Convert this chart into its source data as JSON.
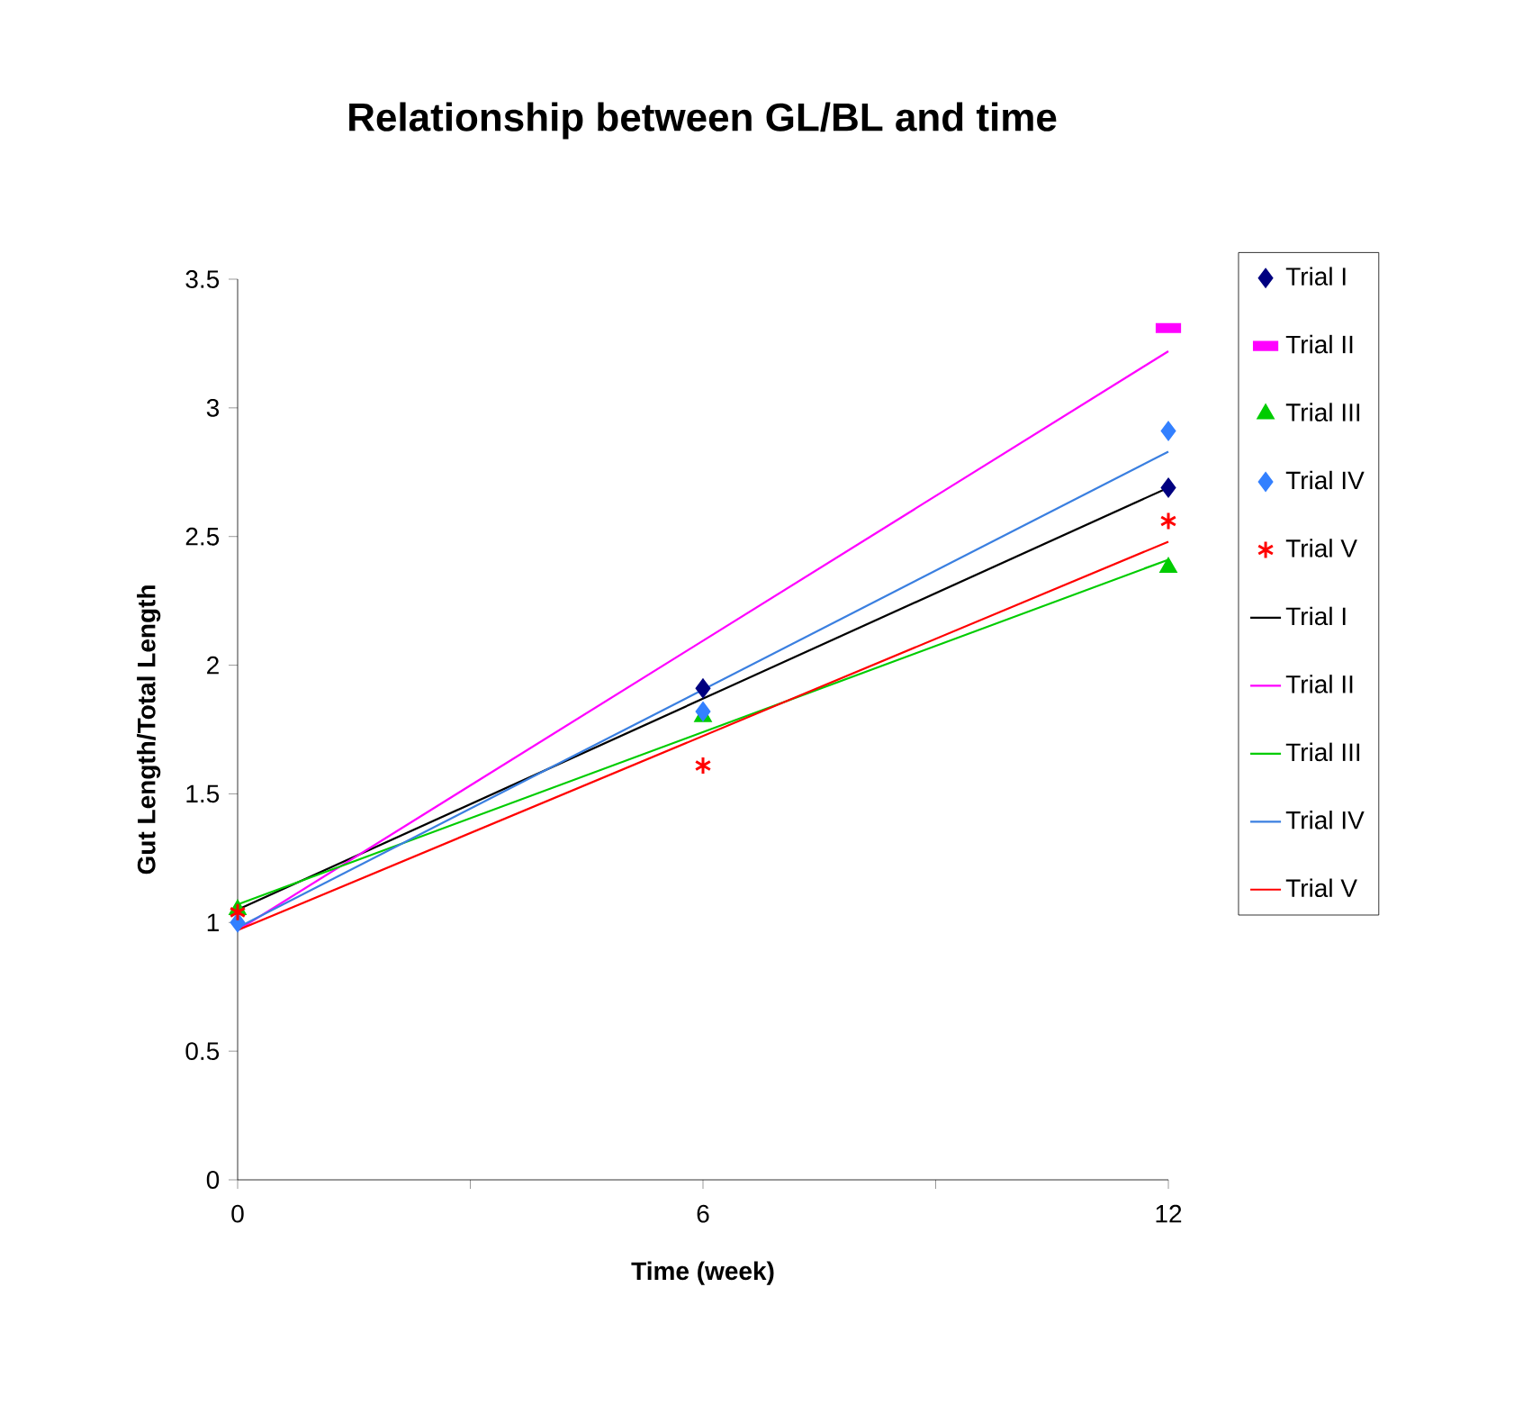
{
  "chart_data": {
    "type": "scatter",
    "title": "Relationship between GL/BL and time",
    "xlabel": "Time (week)",
    "ylabel": "Gut Length/Total Length",
    "xlim": [
      0,
      12
    ],
    "xticks": [
      0,
      {
        "value": 3,
        "label": null
      },
      6,
      {
        "value": 9,
        "label": null
      },
      12
    ],
    "ylim": [
      0,
      3.5
    ],
    "yticks": [
      0,
      0.5,
      1,
      1.5,
      2,
      2.5,
      3,
      3.5
    ],
    "grid": false,
    "legend": "right",
    "series": [
      {
        "name": "Trial I",
        "marker": "diamond",
        "color": "#000080",
        "x": [
          6,
          12
        ],
        "values": [
          1.91,
          2.69
        ]
      },
      {
        "name": "Trial II",
        "marker": "square",
        "color": "#ff00ff",
        "x": [
          12
        ],
        "values": [
          3.31
        ]
      },
      {
        "name": "Trial III",
        "marker": "triangle",
        "color": "#00cc00",
        "x": [
          0,
          6,
          12
        ],
        "values": [
          1.05,
          1.8,
          2.38
        ]
      },
      {
        "name": "Trial IV",
        "marker": "diamond",
        "color": "#3380ff",
        "x": [
          0,
          6,
          12
        ],
        "values": [
          1.0,
          1.82,
          2.91
        ]
      },
      {
        "name": "Trial V",
        "marker": "cross",
        "color": "#ff0000",
        "x": [
          0,
          6,
          12
        ],
        "values": [
          1.04,
          1.61,
          2.56
        ]
      },
      {
        "name": "Trial I",
        "type": "line",
        "marker": "none",
        "color": "#000000",
        "x": [
          0,
          12
        ],
        "values": [
          1.05,
          2.69
        ]
      },
      {
        "name": "Trial II",
        "type": "line",
        "marker": "none",
        "color": "#ff00ff",
        "x": [
          0,
          12
        ],
        "values": [
          0.97,
          3.22
        ]
      },
      {
        "name": "Trial III",
        "type": "line",
        "marker": "none",
        "color": "#00cc00",
        "x": [
          0,
          12
        ],
        "values": [
          1.07,
          2.41
        ]
      },
      {
        "name": "Trial IV",
        "type": "line",
        "marker": "none",
        "color": "#3a7fe0",
        "x": [
          0,
          12
        ],
        "values": [
          0.98,
          2.83
        ]
      },
      {
        "name": "Trial V",
        "type": "line",
        "marker": "none",
        "color": "#ff0000",
        "x": [
          0,
          12
        ],
        "values": [
          0.97,
          2.48
        ]
      }
    ]
  }
}
